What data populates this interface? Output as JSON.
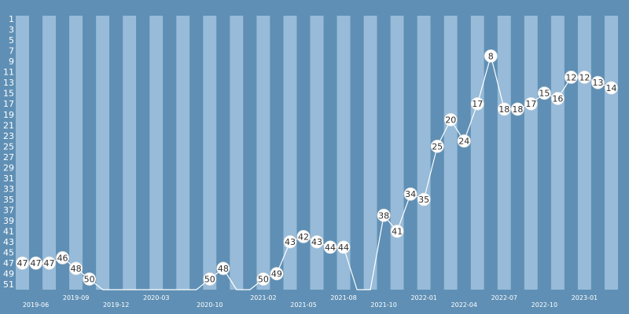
{
  "chart_data": {
    "type": "line",
    "title": "",
    "xlabel": "",
    "ylabel": "",
    "y_reversed": true,
    "ylim": [
      1,
      52
    ],
    "y_ticks": [
      1,
      3,
      5,
      7,
      9,
      11,
      13,
      15,
      17,
      19,
      21,
      23,
      25,
      27,
      29,
      31,
      33,
      35,
      37,
      39,
      41,
      43,
      45,
      47,
      49,
      51
    ],
    "x_ticks": [
      "2019-06",
      "2019-09",
      "2019-12",
      "2020-03",
      "2020-10",
      "2021-02",
      "2021-05",
      "2021-08",
      "2021-10",
      "2022-01",
      "2022-04",
      "2022-07",
      "2022-10",
      "2023-01"
    ],
    "x_tick_period_index": [
      1,
      4,
      7,
      10,
      14,
      18,
      21,
      24,
      27,
      30,
      33,
      36,
      39,
      42
    ],
    "grid": false,
    "colors": {
      "background": "#5f8fb4",
      "band_light": "#97bbd8",
      "band_dark": "#5f8fb4",
      "line": "#ffffff",
      "marker_fill": "#ffffff",
      "label_text": "#2f2f2f"
    },
    "series": [
      {
        "points": [
          {
            "rank": 47,
            "label": "47"
          },
          {
            "rank": 47,
            "label": "47"
          },
          {
            "rank": 47,
            "label": "47"
          },
          {
            "rank": 46,
            "label": "46"
          },
          {
            "rank": 48,
            "label": "48"
          },
          {
            "rank": 50,
            "label": "50"
          },
          {
            "rank": 52,
            "label": null
          },
          {
            "rank": 52,
            "label": null
          },
          {
            "rank": 52,
            "label": null
          },
          {
            "rank": 52,
            "label": null
          },
          {
            "rank": 52,
            "label": null
          },
          {
            "rank": 52,
            "label": null
          },
          {
            "rank": 52,
            "label": null
          },
          {
            "rank": 52,
            "label": null
          },
          {
            "rank": 50,
            "label": "50"
          },
          {
            "rank": 48,
            "label": "48"
          },
          {
            "rank": 52,
            "label": null
          },
          {
            "rank": 52,
            "label": null
          },
          {
            "rank": 50,
            "label": "50"
          },
          {
            "rank": 49,
            "label": "49"
          },
          {
            "rank": 43,
            "label": "43"
          },
          {
            "rank": 42,
            "label": "42"
          },
          {
            "rank": 43,
            "label": "43"
          },
          {
            "rank": 44,
            "label": "44"
          },
          {
            "rank": 44,
            "label": "44"
          },
          {
            "rank": 52,
            "label": null
          },
          {
            "rank": 52,
            "label": null
          },
          {
            "rank": 38,
            "label": "38"
          },
          {
            "rank": 41,
            "label": "41"
          },
          {
            "rank": 34,
            "label": "34"
          },
          {
            "rank": 35,
            "label": "35"
          },
          {
            "rank": 25,
            "label": "25"
          },
          {
            "rank": 20,
            "label": "20"
          },
          {
            "rank": 24,
            "label": "24"
          },
          {
            "rank": 17,
            "label": "17"
          },
          {
            "rank": 8,
            "label": "8"
          },
          {
            "rank": 18,
            "label": "18"
          },
          {
            "rank": 18,
            "label": "18"
          },
          {
            "rank": 17,
            "label": "17"
          },
          {
            "rank": 15,
            "label": "15"
          },
          {
            "rank": 16,
            "label": "16"
          },
          {
            "rank": 12,
            "label": "12"
          },
          {
            "rank": 12,
            "label": "12"
          },
          {
            "rank": 13,
            "label": "13"
          },
          {
            "rank": 14,
            "label": "14"
          }
        ]
      }
    ]
  }
}
